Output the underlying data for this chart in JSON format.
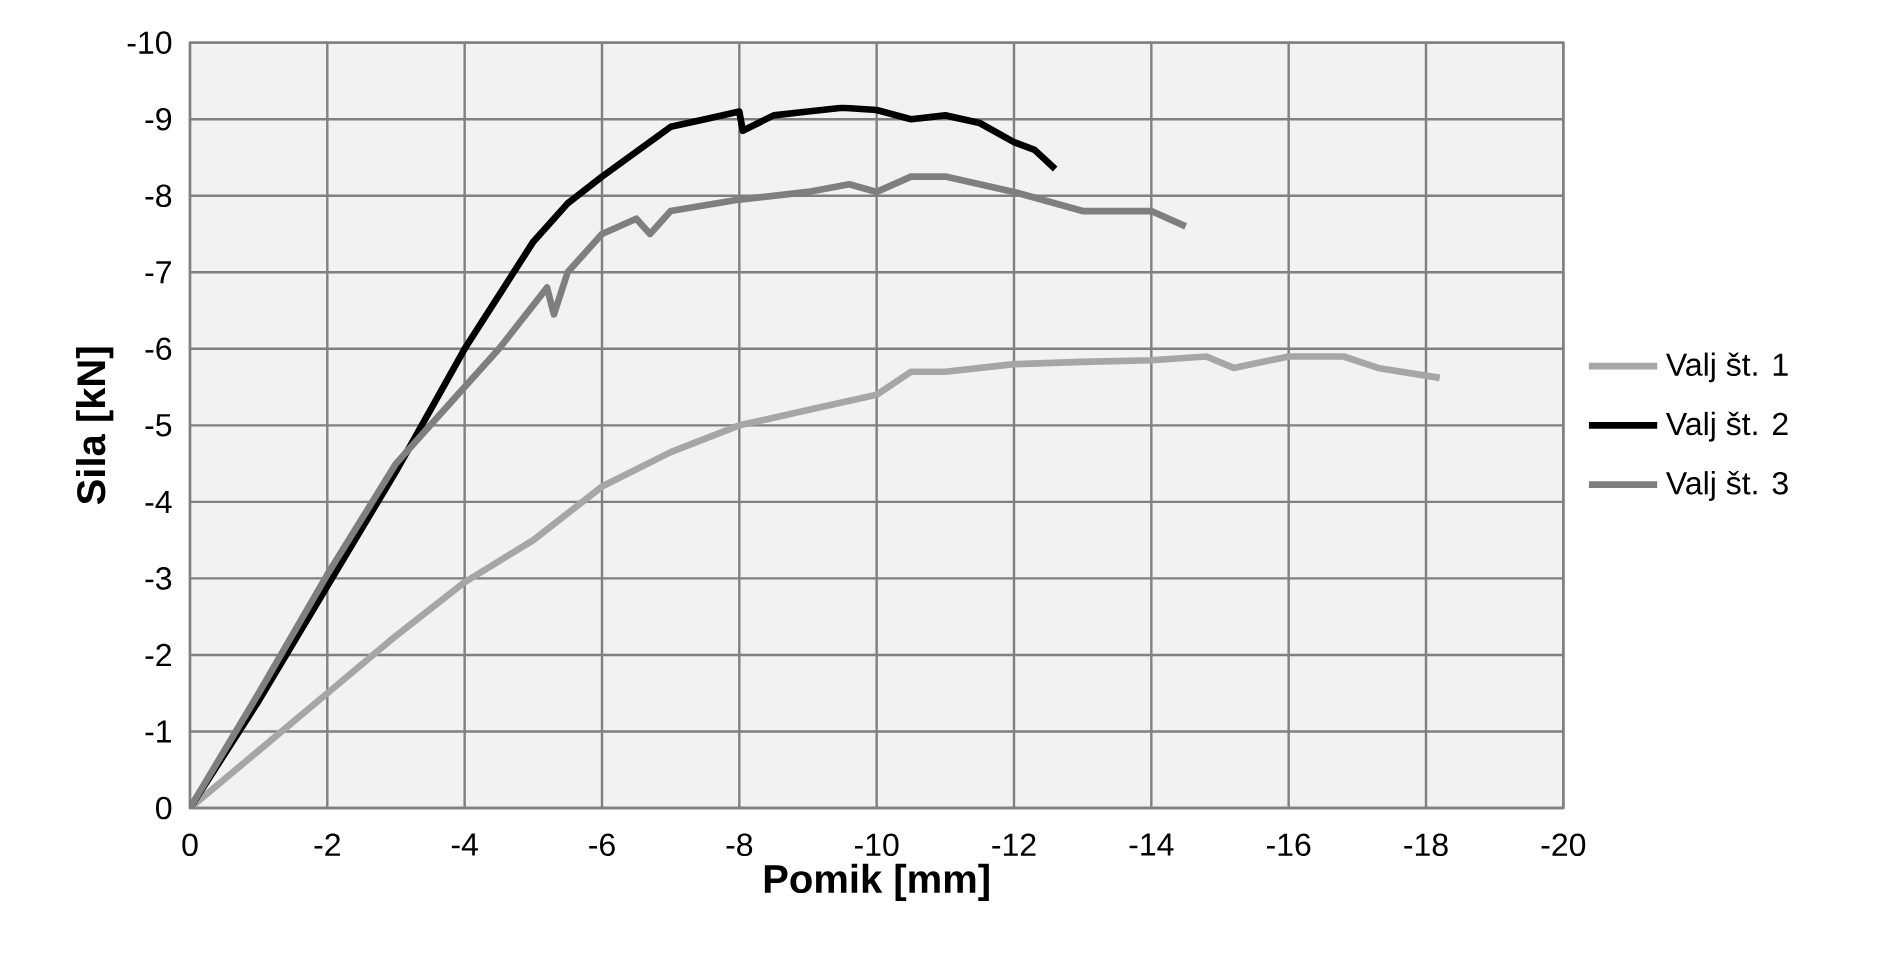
{
  "chart_data": {
    "type": "line",
    "xlabel": "Pomik [mm]",
    "ylabel": "Sila [kN]",
    "xlim": [
      0,
      -20
    ],
    "ylim": [
      0,
      -10
    ],
    "xticks": [
      0,
      -2,
      -4,
      -6,
      -8,
      -10,
      -12,
      -14,
      -16,
      -18,
      -20
    ],
    "yticks": [
      0,
      -1,
      -2,
      -3,
      -4,
      -5,
      -6,
      -7,
      -8,
      -9,
      -10
    ],
    "grid": true,
    "legend": "right",
    "marker": "none",
    "line_style": "solid",
    "series": [
      {
        "name": "Valj št. 1",
        "color": "#a6a6a6",
        "x": [
          0,
          -1,
          -2,
          -3,
          -4,
          -5,
          -6,
          -7,
          -8,
          -9,
          -10,
          -10.5,
          -11,
          -12,
          -13,
          -14,
          -14.8,
          -15.2,
          -16,
          -16.8,
          -17.3,
          -18.2
        ],
        "values": [
          0,
          -0.75,
          -1.5,
          -2.25,
          -2.95,
          -3.5,
          -4.2,
          -4.65,
          -5.0,
          -5.2,
          -5.4,
          -5.7,
          -5.7,
          -5.8,
          -5.83,
          -5.85,
          -5.9,
          -5.75,
          -5.9,
          -5.9,
          -5.75,
          -5.62
        ]
      },
      {
        "name": "Valj št. 2",
        "color": "#000000",
        "x": [
          0,
          -1,
          -2,
          -3,
          -4,
          -5,
          -5.5,
          -6,
          -7,
          -7.5,
          -8,
          -8.05,
          -8.5,
          -9,
          -9.5,
          -10,
          -10.5,
          -11,
          -11.5,
          -12,
          -12.3,
          -12.6
        ],
        "values": [
          0,
          -1.4,
          -2.9,
          -4.4,
          -6.0,
          -7.4,
          -7.9,
          -8.25,
          -8.9,
          -9.0,
          -9.1,
          -8.85,
          -9.05,
          -9.1,
          -9.15,
          -9.12,
          -9.0,
          -9.05,
          -8.95,
          -8.7,
          -8.6,
          -8.35
        ]
      },
      {
        "name": "Valj št. 3",
        "color": "#7f7f7f",
        "x": [
          0,
          -1,
          -2,
          -3,
          -3.5,
          -4,
          -4.5,
          -5.2,
          -5.3,
          -5.5,
          -6,
          -6.5,
          -6.7,
          -7,
          -8,
          -9,
          -9.6,
          -10,
          -10.5,
          -11,
          -12,
          -13,
          -14,
          -14.5
        ],
        "values": [
          0,
          -1.5,
          -3.05,
          -4.5,
          -5.0,
          -5.5,
          -6.0,
          -6.8,
          -6.45,
          -7.0,
          -7.5,
          -7.7,
          -7.5,
          -7.8,
          -7.95,
          -8.05,
          -8.15,
          -8.05,
          -8.25,
          -8.25,
          -8.05,
          -7.8,
          -7.8,
          -7.6
        ]
      }
    ]
  }
}
